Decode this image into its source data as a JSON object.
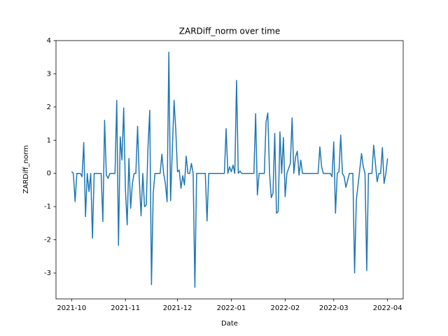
{
  "chart_data": {
    "type": "line",
    "title": "ZARDiff_norm over time",
    "x_label": "Date",
    "y_label": "ZARDiff_norm",
    "color": "#1f77b4",
    "x": [
      "2021-10-01",
      "2021-10-02",
      "2021-10-03",
      "2021-10-04",
      "2021-10-06",
      "2021-10-07",
      "2021-10-08",
      "2021-10-09",
      "2021-10-10",
      "2021-10-11",
      "2021-10-12",
      "2021-10-13",
      "2021-10-14",
      "2021-10-18",
      "2021-10-19",
      "2021-10-20",
      "2021-10-21",
      "2021-10-22",
      "2021-10-23",
      "2021-10-26",
      "2021-10-27",
      "2021-10-28",
      "2021-10-29",
      "2021-10-30",
      "2021-10-31",
      "2021-11-01",
      "2021-11-02",
      "2021-11-03",
      "2021-11-04",
      "2021-11-05",
      "2021-11-06",
      "2021-11-07",
      "2021-11-08",
      "2021-11-09",
      "2021-11-10",
      "2021-11-11",
      "2021-11-12",
      "2021-11-13",
      "2021-11-14",
      "2021-11-15",
      "2021-11-16",
      "2021-11-17",
      "2021-11-18",
      "2021-11-21",
      "2021-11-22",
      "2021-11-23",
      "2021-11-24",
      "2021-11-25",
      "2021-11-26",
      "2021-11-27",
      "2021-11-29",
      "2021-11-30",
      "2021-12-01",
      "2021-12-02",
      "2021-12-03",
      "2021-12-04",
      "2021-12-05",
      "2021-12-06",
      "2021-12-07",
      "2021-12-08",
      "2021-12-09",
      "2021-12-10",
      "2021-12-11",
      "2021-12-12",
      "2021-12-17",
      "2021-12-18",
      "2021-12-19",
      "2021-12-28",
      "2021-12-29",
      "2021-12-30",
      "2021-12-31",
      "2022-01-01",
      "2022-01-02",
      "2022-01-03",
      "2022-01-04",
      "2022-01-05",
      "2022-01-06",
      "2022-01-07",
      "2022-01-14",
      "2022-01-15",
      "2022-01-16",
      "2022-01-17",
      "2022-01-20",
      "2022-01-21",
      "2022-01-22",
      "2022-01-23",
      "2022-01-24",
      "2022-01-25",
      "2022-01-26",
      "2022-01-27",
      "2022-01-28",
      "2022-01-29",
      "2022-01-30",
      "2022-01-31",
      "2022-02-01",
      "2022-02-02",
      "2022-02-04",
      "2022-02-05",
      "2022-02-06",
      "2022-02-07",
      "2022-02-08",
      "2022-02-09",
      "2022-02-10",
      "2022-02-11",
      "2022-02-20",
      "2022-02-21",
      "2022-02-22",
      "2022-02-23",
      "2022-02-27",
      "2022-02-28",
      "2022-03-01",
      "2022-03-02",
      "2022-03-03",
      "2022-03-04",
      "2022-03-05",
      "2022-03-06",
      "2022-03-07",
      "2022-03-08",
      "2022-03-10",
      "2022-03-12",
      "2022-03-13",
      "2022-03-14",
      "2022-03-15",
      "2022-03-17",
      "2022-03-18",
      "2022-03-19",
      "2022-03-20",
      "2022-03-21",
      "2022-03-23",
      "2022-03-24",
      "2022-03-26",
      "2022-03-27",
      "2022-03-28",
      "2022-03-29",
      "2022-03-30",
      "2022-03-31",
      "2022-04-01"
    ],
    "values": [
      0.05,
      0,
      -0.85,
      0,
      0,
      -0.1,
      0.93,
      -1.3,
      0,
      -0.55,
      0,
      -1.95,
      0,
      0,
      -1.45,
      1.6,
      -0.05,
      -0.15,
      0,
      0,
      2.2,
      -2.17,
      1.1,
      0.4,
      1.97,
      -0.5,
      -1.55,
      0.45,
      -1.05,
      -0.3,
      0,
      0,
      1.42,
      -0.2,
      -1.28,
      0,
      -1.0,
      -0.95,
      0.8,
      1.9,
      -3.35,
      -0.6,
      0,
      0,
      0.58,
      0,
      -0.3,
      -0.85,
      3.65,
      -0.82,
      2.2,
      1.3,
      0.05,
      0.1,
      -0.45,
      -0.07,
      -0.35,
      0.52,
      0,
      0,
      0.3,
      0,
      -3.43,
      0,
      0,
      -1.43,
      0,
      0,
      1.35,
      0,
      0.2,
      0.05,
      0.25,
      0,
      2.8,
      0,
      0.07,
      0,
      0,
      1.8,
      -0.65,
      0,
      0,
      1.55,
      1.82,
      0,
      -0.73,
      -0.6,
      1.2,
      -1.2,
      -1.15,
      1.25,
      0,
      1.08,
      -0.7,
      0,
      0.3,
      1.67,
      0,
      0.5,
      0.67,
      -0.05,
      0.4,
      0,
      0,
      0.8,
      0.2,
      0,
      0,
      -0.1,
      0.95,
      -1.2,
      0,
      0.05,
      1.15,
      0,
      -0.1,
      -0.42,
      0,
      0,
      -3.0,
      -0.8,
      -0.35,
      0.6,
      0.2,
      0,
      -2.93,
      0,
      0,
      0.85,
      -0.25,
      0,
      0,
      0.78,
      -0.3,
      0,
      0.45
    ],
    "xlim": [
      "2021-09-22",
      "2022-04-10"
    ],
    "xticks": [
      {
        "value": "2021-10-01",
        "label": "2021-10"
      },
      {
        "value": "2021-11-01",
        "label": "2021-11"
      },
      {
        "value": "2021-12-01",
        "label": "2021-12"
      },
      {
        "value": "2022-01-01",
        "label": "2022-01"
      },
      {
        "value": "2022-02-01",
        "label": "2022-02"
      },
      {
        "value": "2022-03-01",
        "label": "2022-03"
      },
      {
        "value": "2022-04-01",
        "label": "2022-04"
      }
    ],
    "ylim": [
      -3.78,
      4.0
    ],
    "yticks": [
      -3,
      -2,
      -1,
      0,
      1,
      2,
      3,
      4
    ]
  }
}
